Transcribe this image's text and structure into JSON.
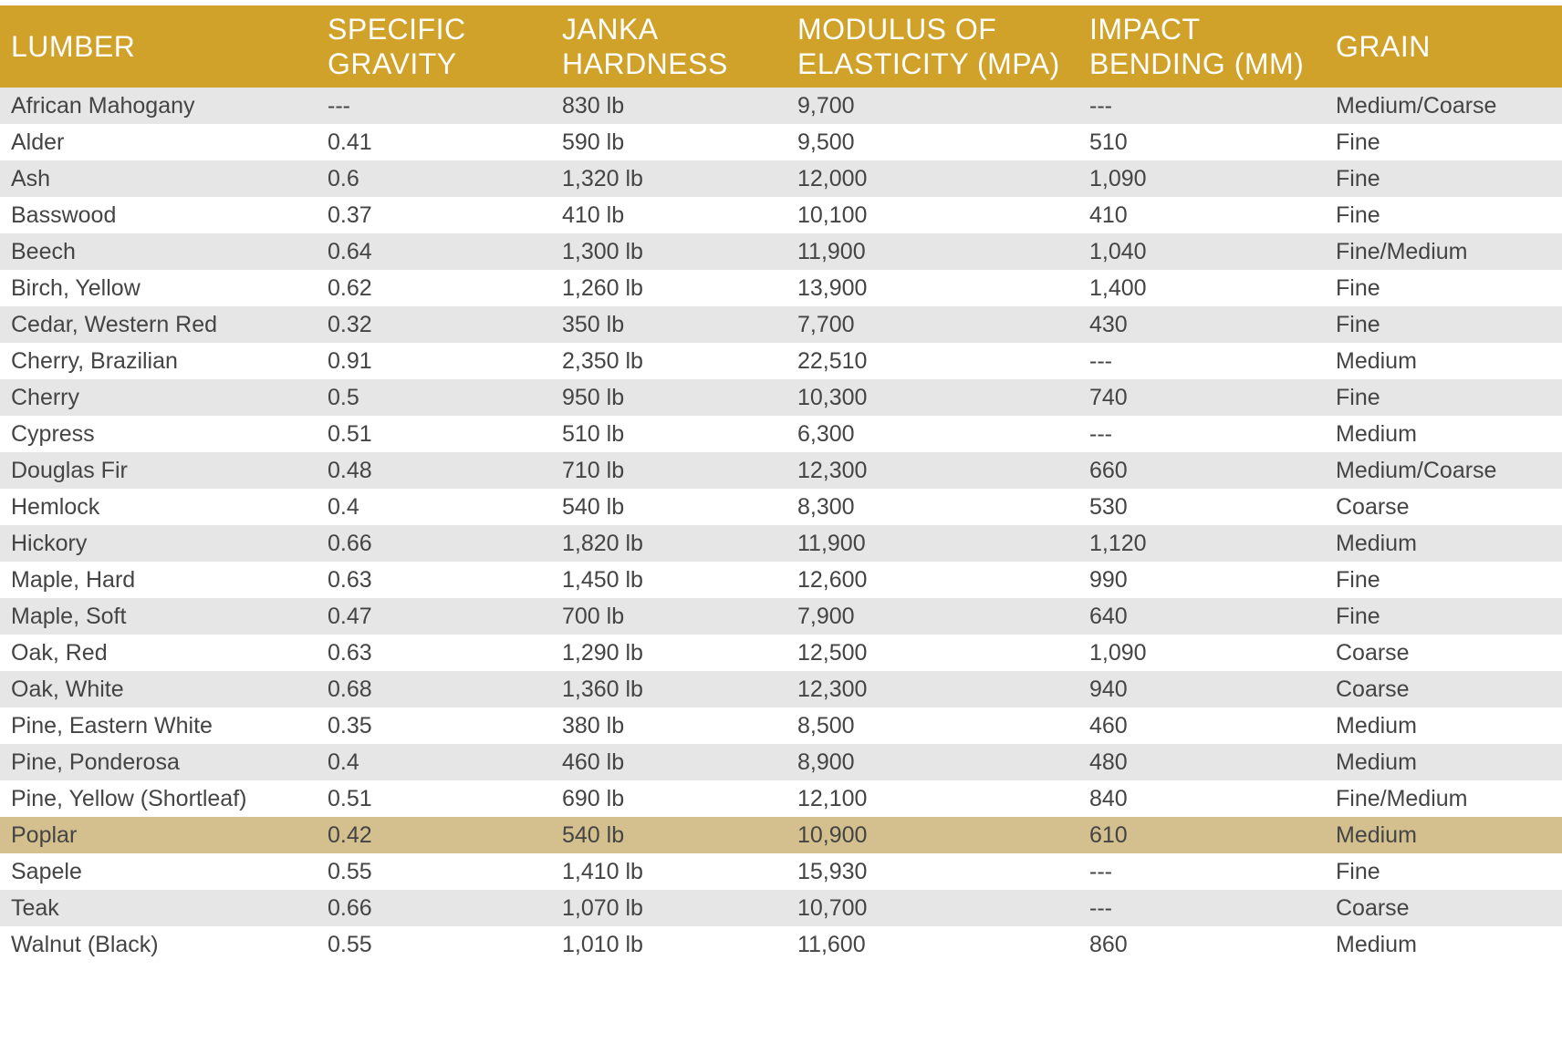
{
  "table": {
    "headers": [
      "LUMBER",
      "SPECIFIC GRAVITY",
      "JANKA HARDNESS",
      "MODULUS OF ELASTICITY (MPA)",
      "IMPACT BENDING (MM)",
      "GRAIN"
    ],
    "highlighted_row": "Poplar",
    "rows": [
      [
        "African Mahogany",
        "---",
        "830 lb",
        "9,700",
        "---",
        "Medium/Coarse"
      ],
      [
        "Alder",
        "0.41",
        "590 lb",
        "9,500",
        "510",
        "Fine"
      ],
      [
        "Ash",
        "0.6",
        "1,320 lb",
        "12,000",
        "1,090",
        "Fine"
      ],
      [
        "Basswood",
        "0.37",
        "410 lb",
        "10,100",
        "410",
        "Fine"
      ],
      [
        "Beech",
        "0.64",
        "1,300 lb",
        "11,900",
        "1,040",
        "Fine/Medium"
      ],
      [
        "Birch, Yellow",
        "0.62",
        "1,260 lb",
        "13,900",
        "1,400",
        "Fine"
      ],
      [
        "Cedar, Western Red",
        "0.32",
        "350 lb",
        "7,700",
        "430",
        "Fine"
      ],
      [
        "Cherry, Brazilian",
        "0.91",
        "2,350 lb",
        "22,510",
        "---",
        "Medium"
      ],
      [
        "Cherry",
        "0.5",
        "950 lb",
        "10,300",
        "740",
        "Fine"
      ],
      [
        "Cypress",
        "0.51",
        "510 lb",
        "6,300",
        "---",
        "Medium"
      ],
      [
        "Douglas Fir",
        "0.48",
        "710 lb",
        "12,300",
        "660",
        "Medium/Coarse"
      ],
      [
        "Hemlock",
        "0.4",
        "540 lb",
        "8,300",
        "530",
        "Coarse"
      ],
      [
        "Hickory",
        "0.66",
        "1,820 lb",
        "11,900",
        "1,120",
        "Medium"
      ],
      [
        "Maple, Hard",
        "0.63",
        "1,450 lb",
        "12,600",
        "990",
        "Fine"
      ],
      [
        "Maple, Soft",
        "0.47",
        "700 lb",
        "7,900",
        "640",
        "Fine"
      ],
      [
        "Oak, Red",
        "0.63",
        "1,290 lb",
        "12,500",
        "1,090",
        "Coarse"
      ],
      [
        "Oak, White",
        "0.68",
        "1,360 lb",
        "12,300",
        "940",
        "Coarse"
      ],
      [
        "Pine, Eastern White",
        "0.35",
        "380 lb",
        "8,500",
        "460",
        "Medium"
      ],
      [
        "Pine, Ponderosa",
        "0.4",
        "460 lb",
        "8,900",
        "480",
        "Medium"
      ],
      [
        "Pine, Yellow (Shortleaf)",
        "0.51",
        "690 lb",
        "12,100",
        "840",
        "Fine/Medium"
      ],
      [
        "Poplar",
        "0.42",
        "540 lb",
        "10,900",
        "610",
        "Medium"
      ],
      [
        "Sapele",
        "0.55",
        "1,410 lb",
        "15,930",
        "---",
        "Fine"
      ],
      [
        "Teak",
        "0.66",
        "1,070 lb",
        "10,700",
        "---",
        "Coarse"
      ],
      [
        "Walnut (Black)",
        "0.55",
        "1,010 lb",
        "11,600",
        "860",
        "Medium"
      ]
    ]
  },
  "colors": {
    "header_bg": "#d0a22a",
    "header_text": "#ffffff",
    "row_odd": "#e6e6e6",
    "row_even": "#ffffff",
    "row_highlight": "#d3c08e",
    "cell_text": "#444444"
  }
}
